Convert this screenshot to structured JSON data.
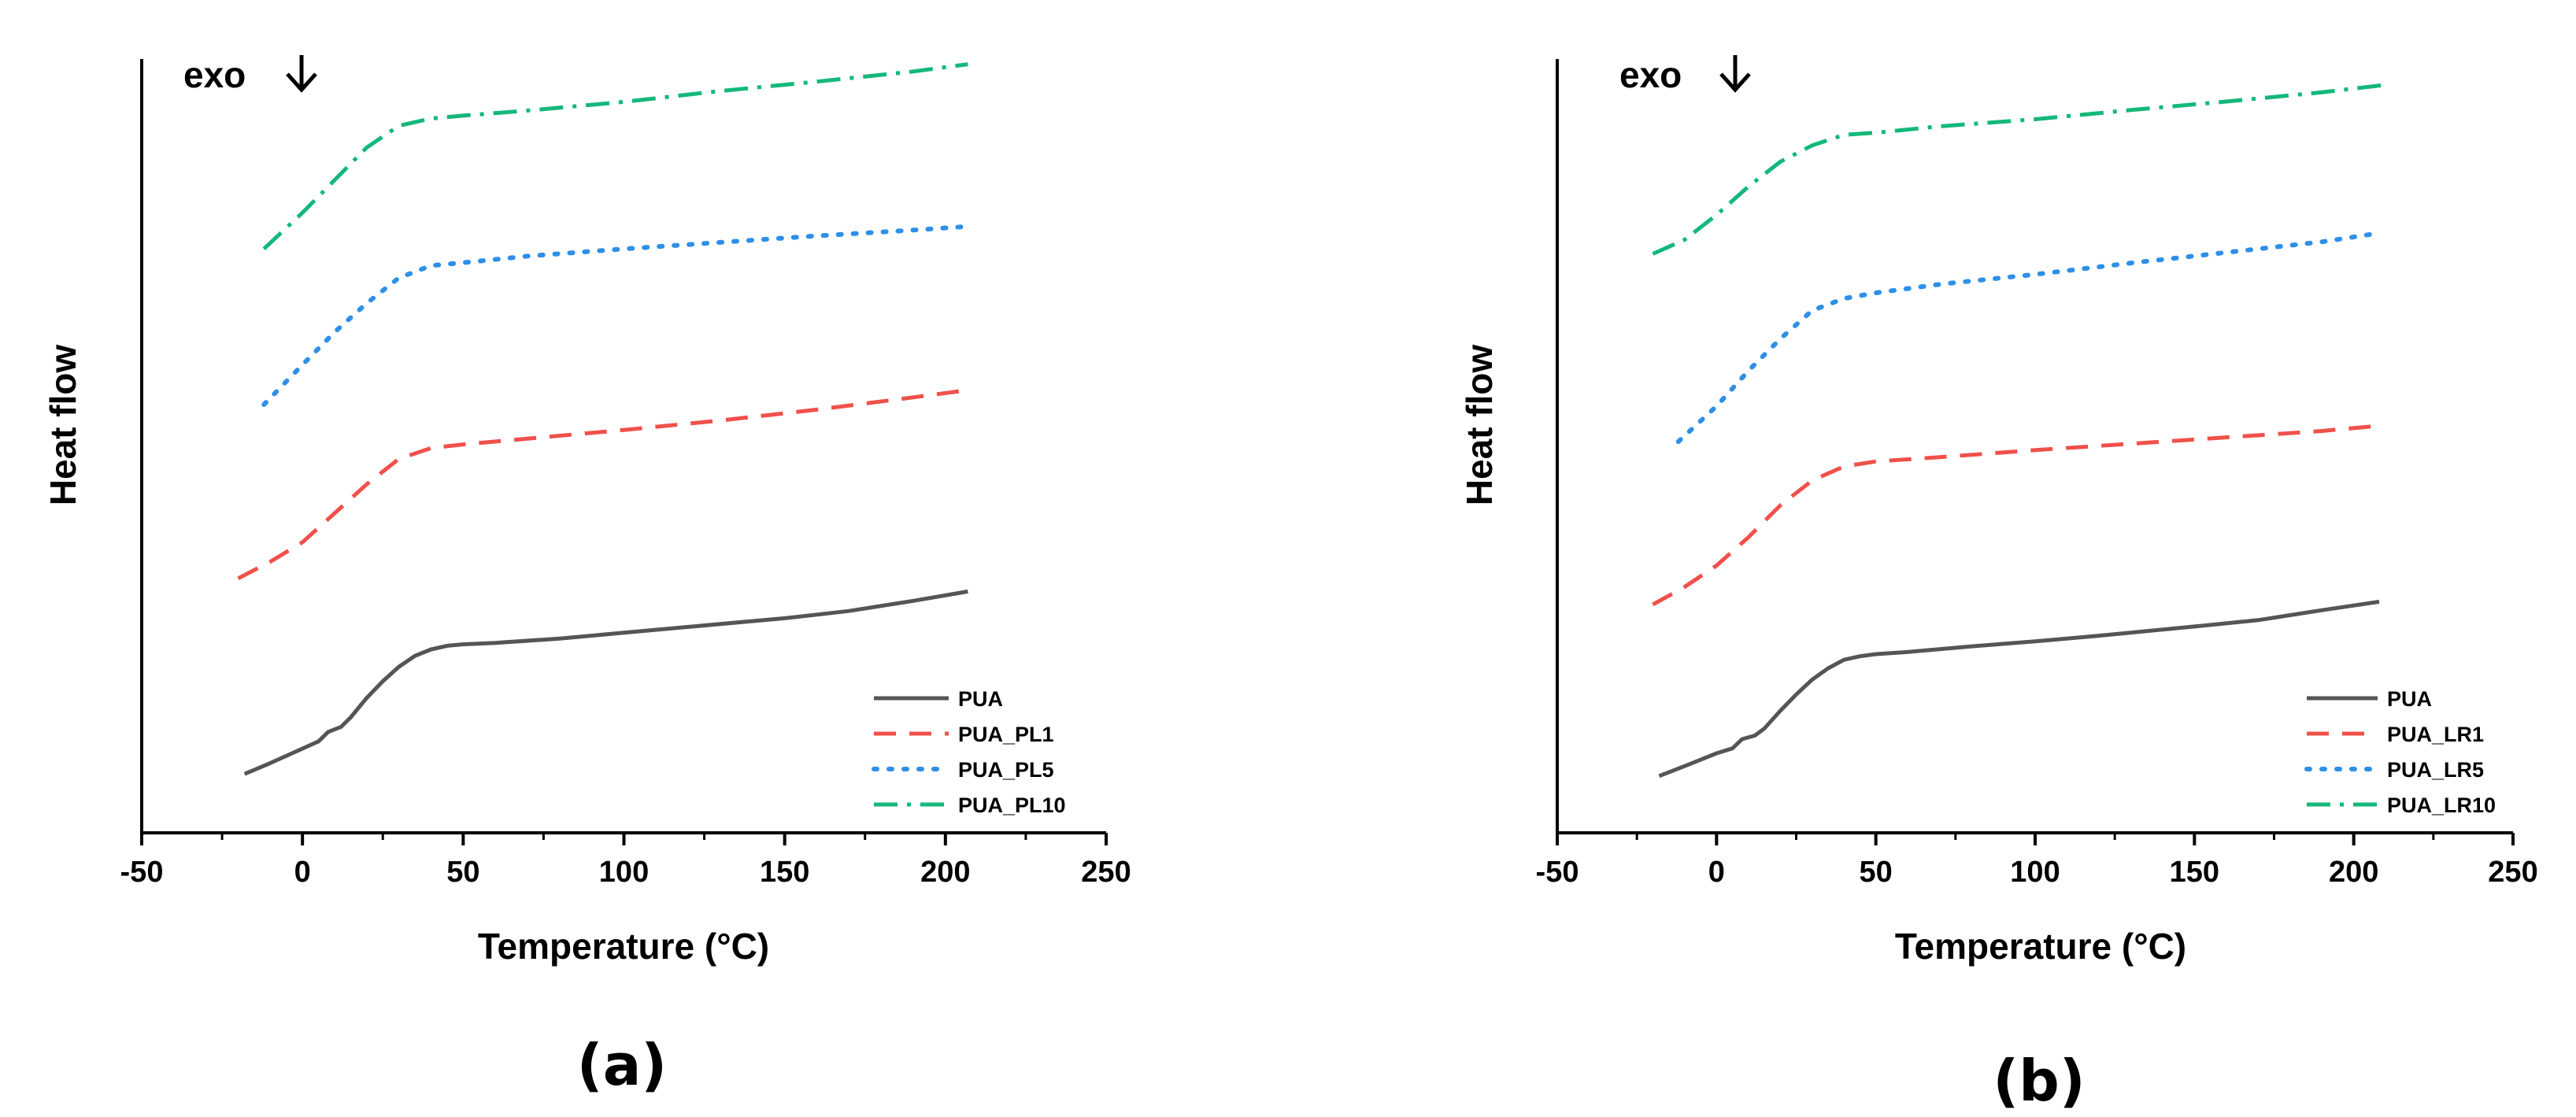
{
  "chart_data": [
    {
      "type": "line",
      "panel_label": "(a)",
      "annotation": "exo",
      "xlabel": "Temperature (°C)",
      "ylabel": "Heat flow",
      "xlim": [
        -50,
        250
      ],
      "ylim": [
        0,
        100
      ],
      "xticks": [
        -50,
        0,
        50,
        100,
        150,
        200,
        250
      ],
      "y_ticks_shown": false,
      "legend_position": "bottom-right",
      "series": [
        {
          "name": "PUA",
          "color": "#555555",
          "dash": "solid",
          "x": [
            -18,
            -10,
            0,
            5,
            8,
            12,
            15,
            20,
            25,
            30,
            35,
            40,
            45,
            50,
            60,
            80,
            100,
            120,
            150,
            170,
            190,
            207
          ],
          "y": [
            4,
            5.5,
            7.5,
            8.5,
            9.8,
            10.5,
            11.8,
            14.5,
            16.8,
            18.8,
            20.3,
            21.2,
            21.7,
            21.9,
            22.1,
            22.7,
            23.5,
            24.3,
            25.5,
            26.5,
            27.9,
            29.2
          ]
        },
        {
          "name": "PUA_PL1",
          "color": "#f0504b",
          "dash": "dashed",
          "x": [
            -20,
            -10,
            0,
            10,
            20,
            30,
            40,
            50,
            70,
            100,
            130,
            160,
            190,
            207
          ],
          "y": [
            31,
            33.3,
            36,
            40,
            44,
            47.5,
            49,
            49.5,
            50.3,
            51.5,
            52.8,
            54.3,
            56,
            57
          ]
        },
        {
          "name": "PUA_PL5",
          "color": "#2e8fe6",
          "dash": "dotted",
          "x": [
            -12,
            0,
            10,
            20,
            30,
            40,
            50,
            70,
            100,
            130,
            160,
            190,
            207
          ],
          "y": [
            55,
            60.5,
            65,
            69,
            72.5,
            74.2,
            74.6,
            75.5,
            76.5,
            77.4,
            78.3,
            79.1,
            79.6
          ]
        },
        {
          "name": "PUA_PL10",
          "color": "#13b87a",
          "dash": "dashdot",
          "x": [
            -12,
            0,
            10,
            20,
            30,
            40,
            50,
            70,
            100,
            130,
            160,
            190,
            207
          ],
          "y": [
            76.5,
            81.5,
            86,
            90.5,
            93.5,
            94.5,
            94.9,
            95.6,
            96.8,
            98.3,
            99.6,
            101,
            102
          ]
        }
      ],
      "legend": [
        "PUA",
        "PUA_PL1",
        "PUA_PL5",
        "PUA_PL10"
      ]
    },
    {
      "type": "line",
      "panel_label": "(b)",
      "annotation": "exo",
      "xlabel": "Temperature (°C)",
      "ylabel": "Heat flow",
      "xlim": [
        -50,
        250
      ],
      "ylim": [
        0,
        100
      ],
      "xticks": [
        -50,
        0,
        50,
        100,
        150,
        200,
        250
      ],
      "y_ticks_shown": false,
      "legend_position": "bottom-right",
      "series": [
        {
          "name": "PUA",
          "color": "#555555",
          "dash": "solid",
          "x": [
            -18,
            -10,
            0,
            5,
            8,
            12,
            15,
            20,
            25,
            30,
            35,
            40,
            45,
            50,
            60,
            80,
            100,
            120,
            150,
            170,
            190,
            208
          ],
          "y": [
            3.8,
            5.2,
            7,
            7.7,
            9,
            9.5,
            10.5,
            13,
            15.3,
            17.4,
            19,
            20.2,
            20.7,
            21,
            21.3,
            22.1,
            22.8,
            23.6,
            24.9,
            25.8,
            27.2,
            28.4
          ]
        },
        {
          "name": "PUA_LR1",
          "color": "#f0504b",
          "dash": "dashed",
          "x": [
            -20,
            -10,
            0,
            10,
            20,
            30,
            40,
            50,
            70,
            100,
            130,
            160,
            190,
            207
          ],
          "y": [
            28,
            30.5,
            33.5,
            37.5,
            42,
            45.5,
            47.5,
            48.2,
            48.8,
            49.8,
            50.7,
            51.6,
            52.5,
            53.2
          ]
        },
        {
          "name": "PUA_LR5",
          "color": "#2e8fe6",
          "dash": "dotted",
          "x": [
            -12,
            0,
            10,
            20,
            30,
            40,
            50,
            70,
            100,
            130,
            160,
            190,
            206
          ],
          "y": [
            51,
            56,
            61,
            65.5,
            69.5,
            71.2,
            72,
            73.2,
            74.6,
            76.2,
            77.7,
            79.2,
            80.3
          ]
        },
        {
          "name": "PUA_LR10",
          "color": "#13b87a",
          "dash": "dashdot",
          "x": [
            -20,
            -10,
            0,
            10,
            20,
            30,
            40,
            50,
            70,
            100,
            130,
            160,
            190,
            209
          ],
          "y": [
            77.5,
            79.5,
            83,
            87,
            90.5,
            92.8,
            94.3,
            94.6,
            95.5,
            96.5,
            97.8,
            99,
            100.3,
            101.3
          ]
        }
      ],
      "legend": [
        "PUA",
        "PUA_LR1",
        "PUA_LR5",
        "PUA_LR10"
      ]
    }
  ]
}
